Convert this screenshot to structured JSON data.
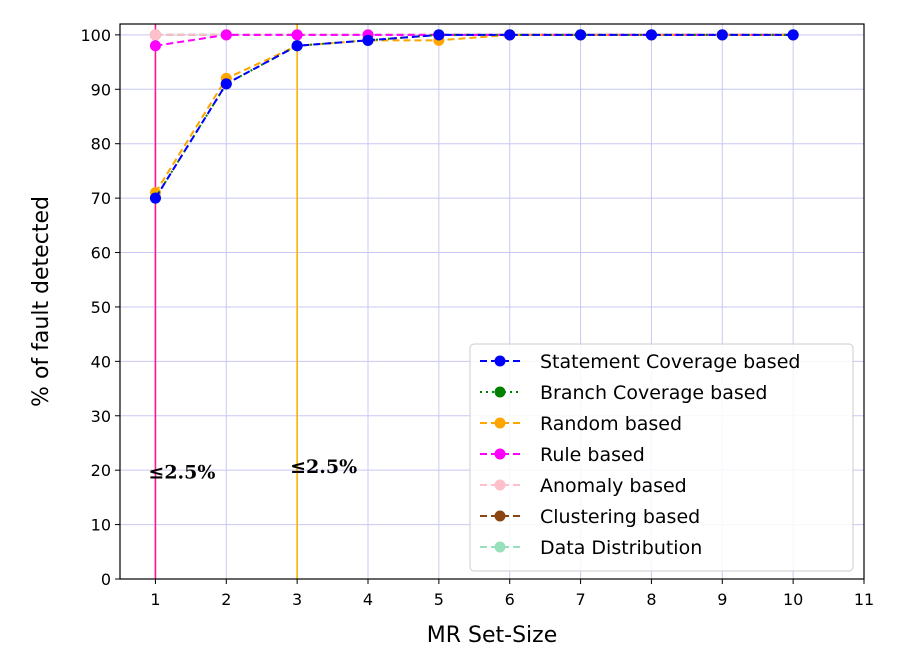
{
  "chart_data": {
    "type": "line",
    "title": "",
    "xlabel": "MR Set-Size",
    "ylabel": "% of fault detected",
    "xlim": [
      0.5,
      11
    ],
    "ylim": [
      0,
      102
    ],
    "xticks": [
      1,
      2,
      3,
      4,
      5,
      6,
      7,
      8,
      9,
      10,
      11
    ],
    "yticks": [
      0,
      10,
      20,
      30,
      40,
      50,
      60,
      70,
      80,
      90,
      100
    ],
    "grid": true,
    "legend_position": "lower-right",
    "x": [
      1,
      2,
      3,
      4,
      5,
      6,
      7,
      8,
      9,
      10
    ],
    "series": [
      {
        "name": "Statement Coverage based",
        "color": "#0000ff",
        "dash": "dashed",
        "values": [
          70,
          91,
          98,
          99,
          100,
          100,
          100,
          100,
          100,
          100
        ]
      },
      {
        "name": "Branch Coverage based",
        "color": "#008000",
        "dash": "dotted",
        "values": [
          70,
          91,
          98,
          99,
          100,
          100,
          100,
          100,
          100,
          100
        ]
      },
      {
        "name": "Random based",
        "color": "#ffa500",
        "dash": "dashed",
        "values": [
          71,
          92,
          98,
          99,
          99,
          100,
          100,
          100,
          100,
          100
        ]
      },
      {
        "name": "Rule based",
        "color": "#ff00ff",
        "dash": "dashed",
        "values": [
          98,
          100,
          100,
          100,
          100,
          100,
          100,
          100,
          100,
          100
        ]
      },
      {
        "name": "Anomaly based",
        "color": "#ffc0cb",
        "dash": "dashed",
        "values": [
          100,
          100,
          100,
          100,
          100,
          100,
          100,
          100,
          100,
          100
        ]
      },
      {
        "name": "Clustering based",
        "color": "#8b4513",
        "dash": "dashed",
        "values": [
          100,
          100,
          100,
          100,
          100,
          100,
          100,
          100,
          100,
          100
        ]
      },
      {
        "name": "Data Distribution",
        "color": "#98dfbb",
        "dash": "dashed",
        "values": [
          100,
          100,
          100,
          100,
          100,
          100,
          100,
          100,
          100,
          100
        ]
      }
    ],
    "vlines": [
      {
        "x": 1,
        "color": "#ff1493"
      },
      {
        "x": 3,
        "color": "#ffb000"
      }
    ],
    "annotations": [
      {
        "text": "≤2.5%",
        "x": 1,
        "y": 18.5
      },
      {
        "text": "≤2.5%",
        "x": 3,
        "y": 19.5
      }
    ]
  }
}
